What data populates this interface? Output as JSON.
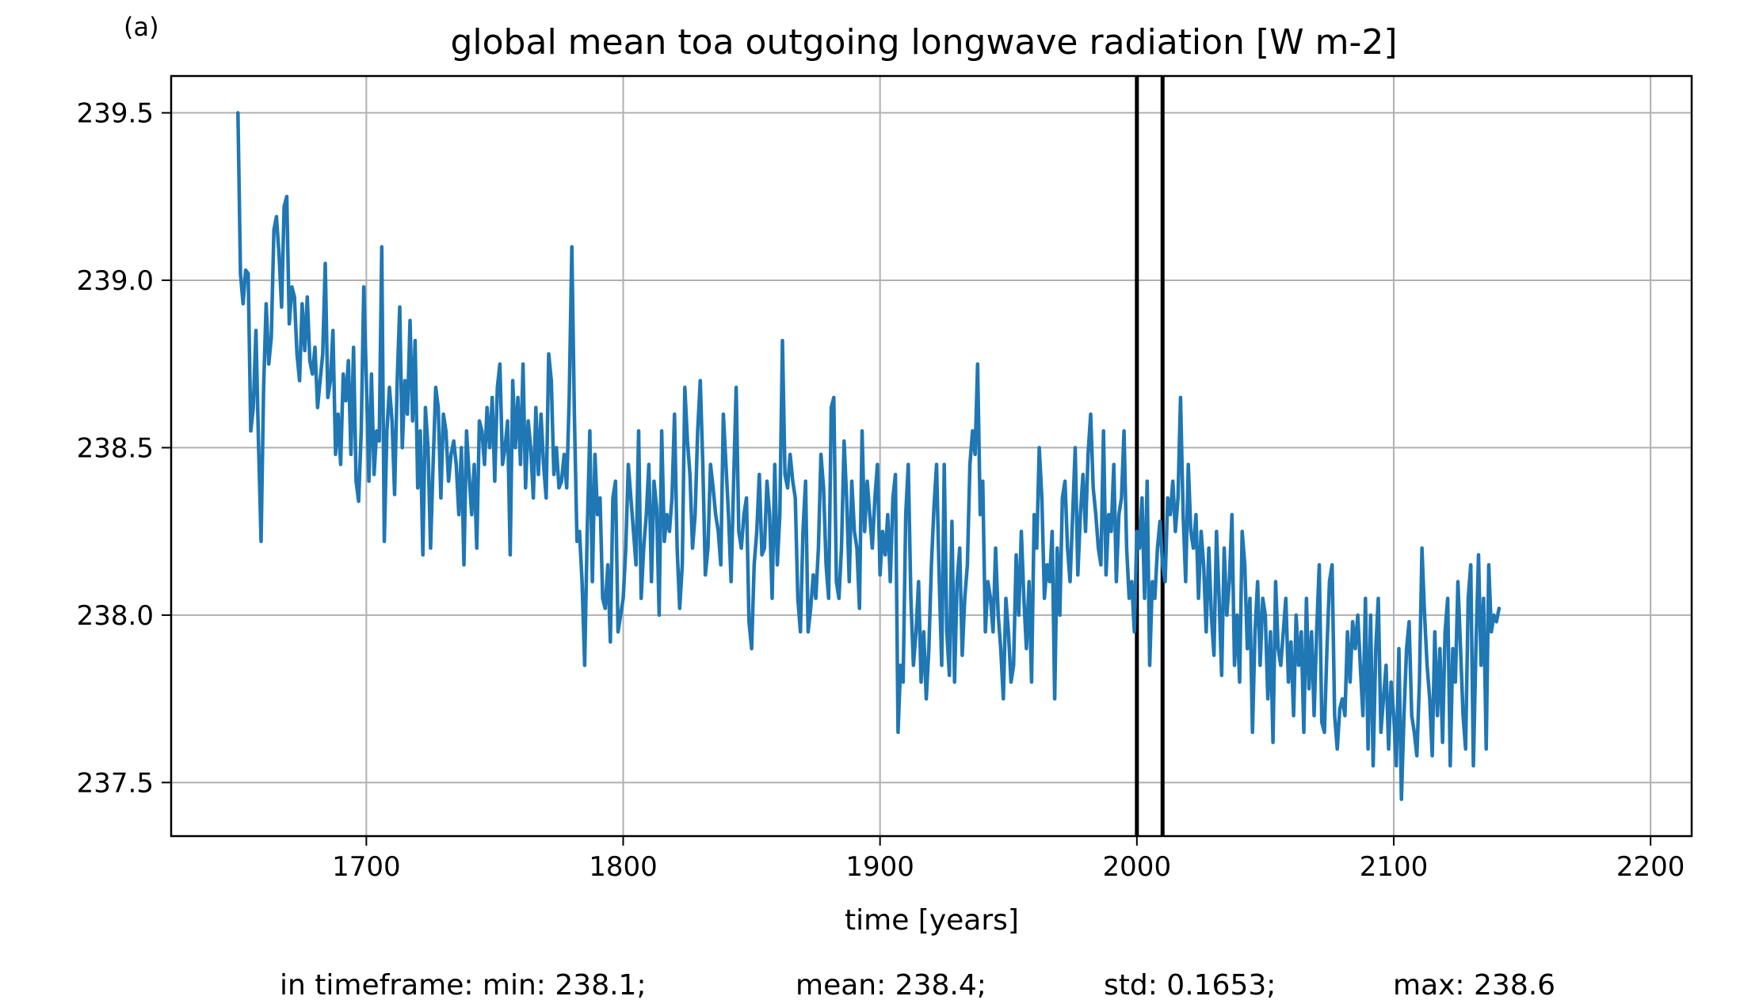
{
  "chart_data": {
    "type": "line",
    "panel_label": "(a)",
    "title": "global mean toa outgoing longwave radiation [W m-2]",
    "xlabel": "time [years]",
    "ylabel": "",
    "xlim": [
      1624,
      2216
    ],
    "ylim": [
      237.34,
      239.61
    ],
    "xticks": [
      1700,
      1800,
      1900,
      2000,
      2100,
      2200
    ],
    "yticks": [
      237.5,
      238.0,
      238.5,
      239.0,
      239.5
    ],
    "xtick_labels": [
      "1700",
      "1800",
      "1900",
      "2000",
      "2100",
      "2200"
    ],
    "ytick_labels": [
      "237.5",
      "238.0",
      "238.5",
      "239.0",
      "239.5"
    ],
    "grid": true,
    "line_color": "#1f77b4",
    "vlines": [
      2000,
      2010
    ],
    "vline_color": "#000000",
    "stats": {
      "min": "in timeframe: min: 238.1;",
      "mean": "mean: 238.4;",
      "std": "std: 0.1653;",
      "max": "max: 238.6"
    },
    "series": [
      {
        "x_start": 1650,
        "x_step": 1,
        "values": [
          239.5,
          239.02,
          238.93,
          239.03,
          239.02,
          238.55,
          238.62,
          238.85,
          238.52,
          238.22,
          238.68,
          238.93,
          238.75,
          238.83,
          239.15,
          239.19,
          239.08,
          238.92,
          239.22,
          239.25,
          238.87,
          238.98,
          238.95,
          238.78,
          238.7,
          238.93,
          238.79,
          238.95,
          238.76,
          238.72,
          238.8,
          238.62,
          238.7,
          238.78,
          239.05,
          238.65,
          238.7,
          238.85,
          238.48,
          238.6,
          238.45,
          238.72,
          238.64,
          238.76,
          238.48,
          238.8,
          238.4,
          238.34,
          238.55,
          238.98,
          238.7,
          238.4,
          238.72,
          238.42,
          238.55,
          238.52,
          239.1,
          238.22,
          238.55,
          238.68,
          238.58,
          238.36,
          238.7,
          238.92,
          238.5,
          238.7,
          238.6,
          238.88,
          238.58,
          238.82,
          238.38,
          238.55,
          238.18,
          238.62,
          238.5,
          238.2,
          238.45,
          238.68,
          238.62,
          238.35,
          238.6,
          238.55,
          238.4,
          238.48,
          238.52,
          238.45,
          238.3,
          238.5,
          238.15,
          238.55,
          238.42,
          238.3,
          238.45,
          238.2,
          238.58,
          238.55,
          238.45,
          238.62,
          238.5,
          238.65,
          238.4,
          238.68,
          238.75,
          238.45,
          238.5,
          238.58,
          238.18,
          238.7,
          238.5,
          238.65,
          238.45,
          238.75,
          238.38,
          238.58,
          238.5,
          238.35,
          238.62,
          238.42,
          238.6,
          238.45,
          238.35,
          238.78,
          238.7,
          238.42,
          238.5,
          238.38,
          238.4,
          238.48,
          238.38,
          238.65,
          239.1,
          238.6,
          238.22,
          238.25,
          238.1,
          237.85,
          238.25,
          238.55,
          238.1,
          238.48,
          238.3,
          238.35,
          238.05,
          238.02,
          238.15,
          237.92,
          238.35,
          238.4,
          237.95,
          238.0,
          238.05,
          238.2,
          238.45,
          238.35,
          238.25,
          238.15,
          238.55,
          238.05,
          238.2,
          238.3,
          238.45,
          238.1,
          238.4,
          238.32,
          238.0,
          238.55,
          238.22,
          238.3,
          238.25,
          238.35,
          238.6,
          238.2,
          238.02,
          238.15,
          238.68,
          238.52,
          238.42,
          238.2,
          238.3,
          238.55,
          238.7,
          238.45,
          238.12,
          238.2,
          238.45,
          238.38,
          238.3,
          238.25,
          238.15,
          238.6,
          238.45,
          238.3,
          238.1,
          238.4,
          238.68,
          238.25,
          238.2,
          238.3,
          238.35,
          237.98,
          237.9,
          238.15,
          238.25,
          238.42,
          238.18,
          238.2,
          238.4,
          238.3,
          238.05,
          238.45,
          238.15,
          238.3,
          238.82,
          238.42,
          238.38,
          238.48,
          238.4,
          238.35,
          238.05,
          237.95,
          238.25,
          238.4,
          237.95,
          238.02,
          238.12,
          238.05,
          238.2,
          238.48,
          238.38,
          238.15,
          238.05,
          238.62,
          238.65,
          238.1,
          238.05,
          238.2,
          238.52,
          238.35,
          238.1,
          238.4,
          238.25,
          238.2,
          238.02,
          238.55,
          238.25,
          238.4,
          238.3,
          238.2,
          238.35,
          238.45,
          238.12,
          238.25,
          238.18,
          238.3,
          238.1,
          238.35,
          238.42,
          237.65,
          237.85,
          237.8,
          238.3,
          238.45,
          238.05,
          237.85,
          237.95,
          238.1,
          237.8,
          237.95,
          237.75,
          237.9,
          238.15,
          238.32,
          238.45,
          238.12,
          237.85,
          238.45,
          237.95,
          237.82,
          238.28,
          237.8,
          238.1,
          238.2,
          237.88,
          238.05,
          238.15,
          238.45,
          238.55,
          238.48,
          238.75,
          238.3,
          238.4,
          237.95,
          238.1,
          238.05,
          237.95,
          238.2,
          238.0,
          237.9,
          237.75,
          238.05,
          237.95,
          237.8,
          237.85,
          238.18,
          238.0,
          238.25,
          238.05,
          237.9,
          238.1,
          237.8,
          238.3,
          238.2,
          238.5,
          238.35,
          238.05,
          238.15,
          238.1,
          238.25,
          237.75,
          238.2,
          238.0,
          238.35,
          238.4,
          238.2,
          238.1,
          238.3,
          238.5,
          238.12,
          238.3,
          238.42,
          238.25,
          238.48,
          238.6,
          238.38,
          238.3,
          238.2,
          238.15,
          238.55,
          238.12,
          238.3,
          238.25,
          238.45,
          238.1,
          238.3,
          238.35,
          238.55,
          238.2,
          238.05,
          238.1,
          237.95,
          238.25,
          238.2,
          238.35,
          238.05,
          238.4,
          237.85,
          238.1,
          238.05,
          238.2,
          238.28,
          238.15,
          238.1,
          238.35,
          238.3,
          238.4,
          238.25,
          238.35,
          238.65,
          238.3,
          238.1,
          238.45,
          238.25,
          238.2,
          238.3,
          238.05,
          238.25,
          238.15,
          237.95,
          238.2,
          238.0,
          237.88,
          238.25,
          238.05,
          237.82,
          238.2,
          238.0,
          238.1,
          238.3,
          237.85,
          238.0,
          237.8,
          238.25,
          238.15,
          237.9,
          238.05,
          237.65,
          237.95,
          238.1,
          237.85,
          238.05,
          238.0,
          237.75,
          237.95,
          237.62,
          238.1,
          237.9,
          237.85,
          237.95,
          238.05,
          237.8,
          237.92,
          237.7,
          238.0,
          237.85,
          237.95,
          237.65,
          238.05,
          237.78,
          237.95,
          237.7,
          237.95,
          238.15,
          237.68,
          237.65,
          237.9,
          238.1,
          238.15,
          237.7,
          237.6,
          237.72,
          237.75,
          237.7,
          237.95,
          237.8,
          237.98,
          237.9,
          238.0,
          237.85,
          237.7,
          238.05,
          237.6,
          238.0,
          237.55,
          237.9,
          238.05,
          237.65,
          237.75,
          237.85,
          237.6,
          237.8,
          237.7,
          237.55,
          237.9,
          237.45,
          237.7,
          237.9,
          237.98,
          237.7,
          237.65,
          237.58,
          237.8,
          238.2,
          238.0,
          237.85,
          237.75,
          237.58,
          237.95,
          237.7,
          237.9,
          237.62,
          237.95,
          238.05,
          237.55,
          237.9,
          237.8,
          238.1,
          237.9,
          237.7,
          237.6,
          238.05,
          238.15,
          237.55,
          237.9,
          238.18,
          237.85,
          238.05,
          237.6,
          238.15,
          237.95,
          238.0,
          237.98,
          238.02
        ]
      }
    ]
  }
}
